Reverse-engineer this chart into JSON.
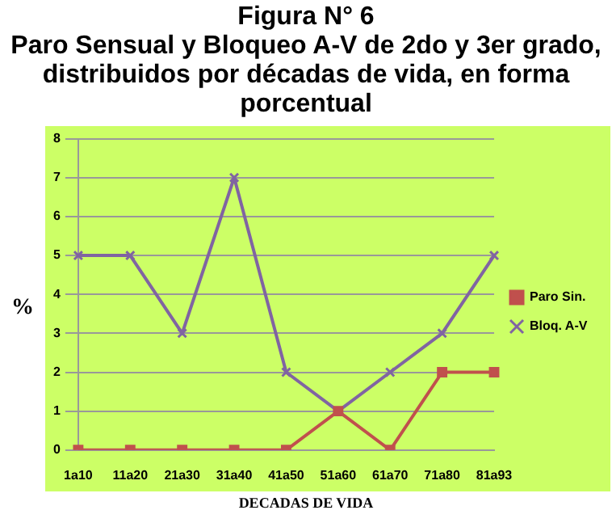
{
  "chart_data": {
    "type": "line",
    "title": "Figura N° 6",
    "subtitle": "Paro Sensual y Bloqueo A-V de 2do y 3er grado, distribuidos por décadas de vida, en forma porcentual",
    "xlabel": "DECADAS DE VIDA",
    "ylabel": "%",
    "categories": [
      "1a10",
      "11a20",
      "21a30",
      "31a40",
      "41a50",
      "51a60",
      "61a70",
      "71a80",
      "81a93"
    ],
    "series": [
      {
        "name": "Paro Sin.",
        "color": "#c0504d",
        "marker": "square",
        "values": [
          0,
          0,
          0,
          0,
          0,
          1,
          0,
          2,
          2
        ]
      },
      {
        "name": "Bloq. A-V",
        "color": "#8064a2",
        "marker": "cross",
        "values": [
          5,
          5,
          3,
          7,
          2,
          1,
          2,
          3,
          5
        ]
      }
    ],
    "ylim": [
      0,
      8
    ],
    "yticks": [
      0,
      1,
      2,
      3,
      4,
      5,
      6,
      7,
      8
    ],
    "grid": "y",
    "legend": "right"
  }
}
